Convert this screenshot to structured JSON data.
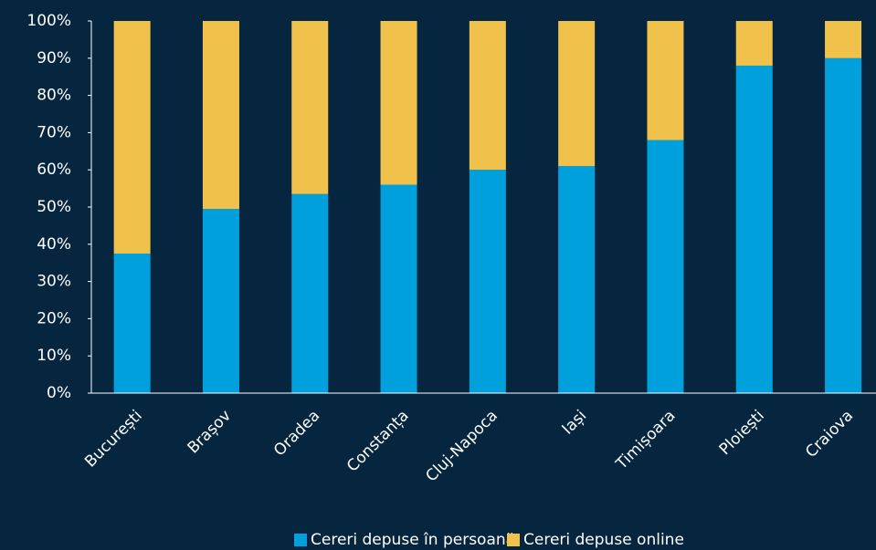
{
  "chart_data": {
    "type": "stacked_bar",
    "categories": [
      "București",
      "Brașov",
      "Oradea",
      "Constanța",
      "Cluj-Napoca",
      "Iași",
      "Timișoara",
      "Ploiești",
      "Craiova"
    ],
    "series": [
      {
        "name": "Cereri depuse în persoană",
        "color": "#00a0dc",
        "values": [
          37.5,
          49.5,
          53.5,
          56,
          60,
          61,
          68,
          88,
          90
        ]
      },
      {
        "name": "Cereri depuse online",
        "color": "#f0c24b",
        "values": [
          62.5,
          50.5,
          46.5,
          44,
          40,
          39,
          32,
          12,
          10
        ]
      }
    ],
    "ylim": [
      0,
      100
    ],
    "yticks": [
      {
        "value": 0,
        "label": "0%"
      },
      {
        "value": 10,
        "label": "10%"
      },
      {
        "value": 20,
        "label": "20%"
      },
      {
        "value": 30,
        "label": "30%"
      },
      {
        "value": 40,
        "label": "40%"
      },
      {
        "value": 50,
        "label": "50%"
      },
      {
        "value": 60,
        "label": "60%"
      },
      {
        "value": 70,
        "label": "70%"
      },
      {
        "value": 80,
        "label": "80%"
      },
      {
        "value": 90,
        "label": "90%"
      },
      {
        "value": 100,
        "label": "100%"
      }
    ],
    "legend": "bottom"
  }
}
